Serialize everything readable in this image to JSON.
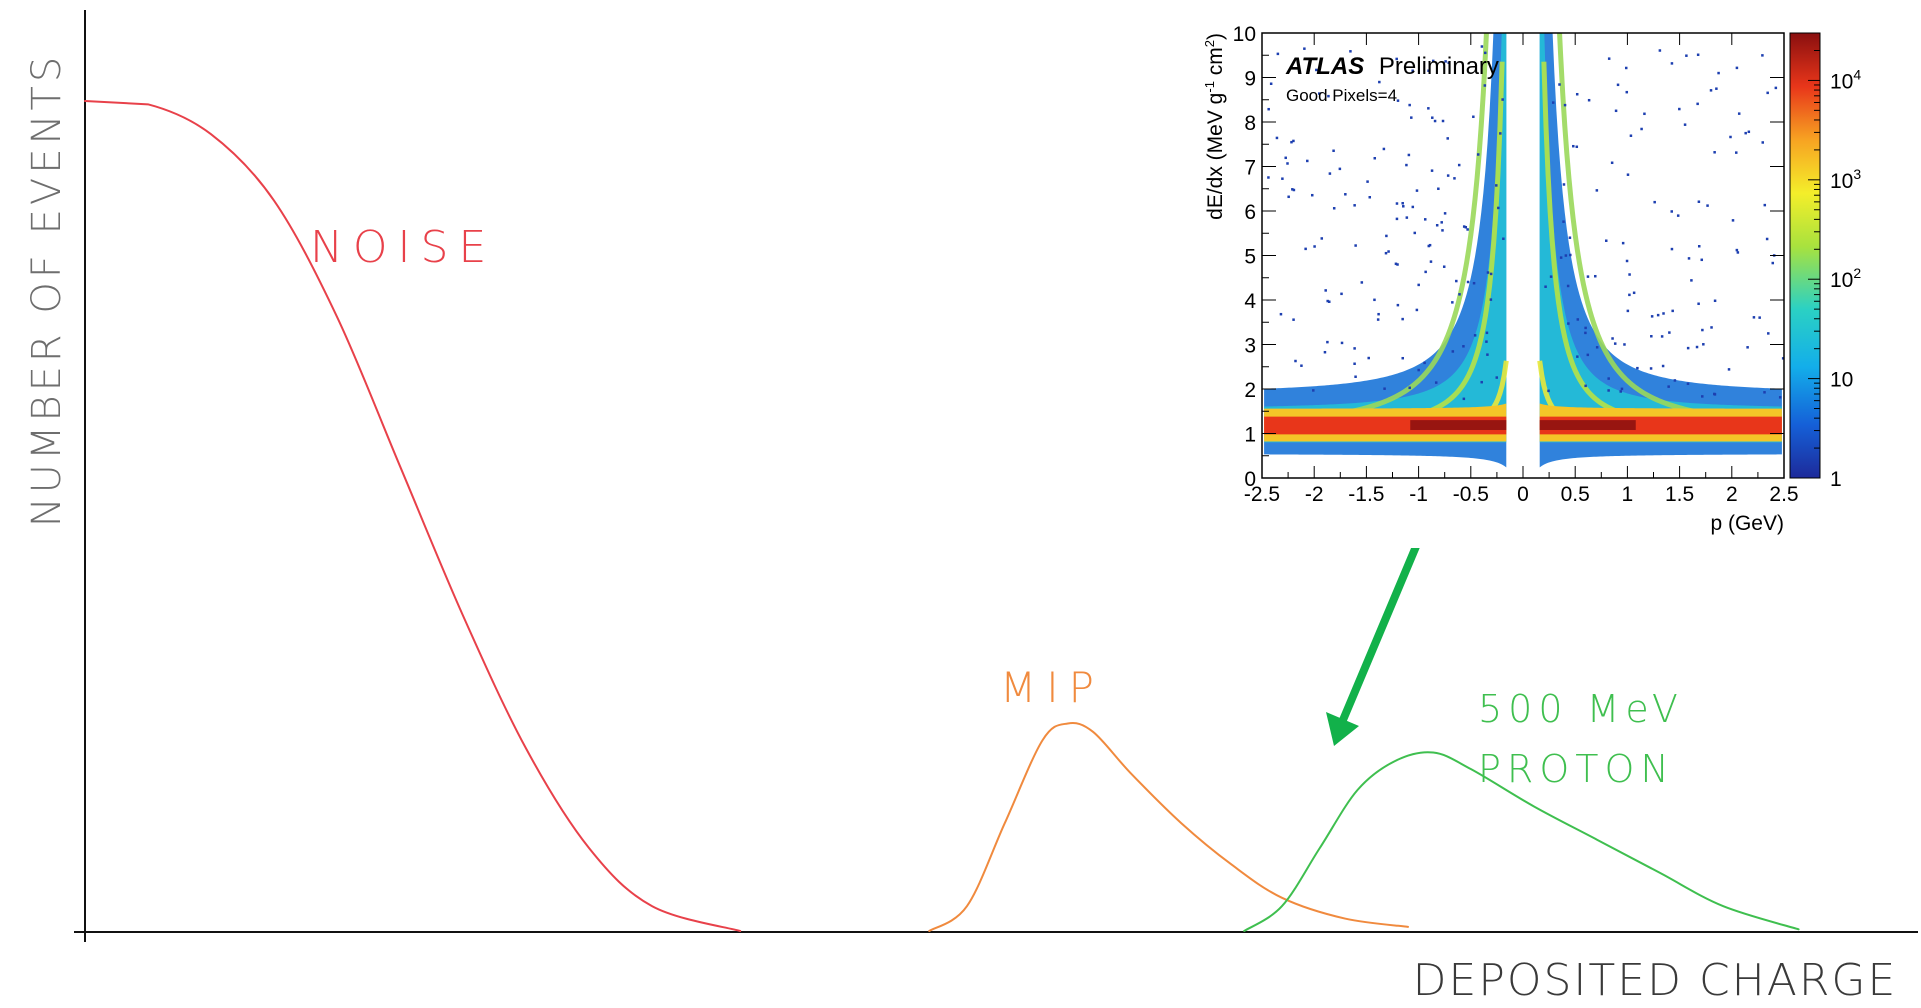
{
  "chart_data": [
    {
      "type": "line",
      "xlabel": "DEPOSITED CHARGE",
      "ylabel": "NUMBER OF EVENTS",
      "axes": {
        "x_ticks": false,
        "y_ticks": false,
        "grid": false
      },
      "series": [
        {
          "name": "NOISE",
          "color": "#e8414a",
          "x": [
            0,
            5,
            10,
            15,
            20,
            25,
            30,
            35,
            40,
            45,
            52
          ],
          "y": [
            100,
            99.6,
            96,
            88,
            74,
            56,
            38,
            22,
            10,
            3,
            0
          ]
        },
        {
          "name": "MIP",
          "color": "#f08a3e",
          "x": [
            67,
            70,
            73,
            76,
            78,
            80,
            83,
            87,
            91,
            95,
            100,
            105
          ],
          "y": [
            0,
            3,
            13,
            23,
            25,
            24,
            19,
            13,
            8,
            4,
            1.5,
            0.5
          ]
        },
        {
          "name": "500 MeV PROTON",
          "color": "#3fbf4f",
          "x": [
            92,
            95,
            98,
            101,
            104,
            107,
            110,
            115,
            120,
            125,
            130,
            136
          ],
          "y": [
            0,
            3,
            10,
            17,
            20.5,
            21.5,
            19.5,
            15,
            11,
            7,
            3,
            0.2
          ]
        }
      ]
    },
    {
      "type": "heatmap",
      "title": "ATLAS",
      "title_suffix": "Preliminary",
      "annotation": "Good Pixels=4",
      "xlabel": "p (GeV)",
      "ylabel": "dE/dx (MeV g",
      "ylabel_sup1": "-1",
      "ylabel_mid": " cm",
      "ylabel_sup2": "2",
      "ylabel_end": ")",
      "xlim": [
        -2.5,
        2.5
      ],
      "ylim": [
        0,
        10
      ],
      "x_ticks": [
        "-2.5",
        "-2",
        "-1.5",
        "-1",
        "-0.5",
        "0",
        "0.5",
        "1",
        "1.5",
        "2",
        "2.5"
      ],
      "y_ticks": [
        "0",
        "1",
        "2",
        "3",
        "4",
        "5",
        "6",
        "7",
        "8",
        "9",
        "10"
      ],
      "colorbar": {
        "scale": "log",
        "range": [
          1,
          30000
        ],
        "ticks": [
          {
            "value": 1,
            "base": "1",
            "exp": ""
          },
          {
            "value": 10,
            "base": "10",
            "exp": ""
          },
          {
            "value": 100,
            "base": "10",
            "exp": "2"
          },
          {
            "value": 1000,
            "base": "10",
            "exp": "3"
          },
          {
            "value": 10000,
            "base": "10",
            "exp": "4"
          }
        ]
      }
    }
  ]
}
